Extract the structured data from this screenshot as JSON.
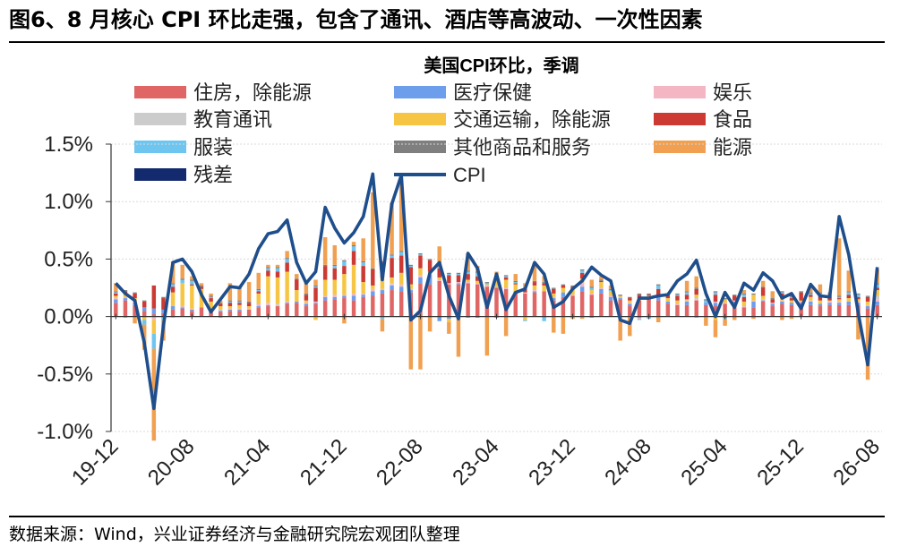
{
  "figure": {
    "title": "图6、8 月核心 CPI 环比走强，包含了通讯、酒店等高波动、一次性因素",
    "source": "数据来源：Wind，兴业证券经济与金融研究院宏观团队整理"
  },
  "chart_data": {
    "type": "bar",
    "title": "美国CPI环比，季调",
    "stacked": true,
    "ylim": [
      -1.0,
      1.5
    ],
    "y_ticks": [
      -1.0,
      -0.5,
      0.0,
      0.5,
      1.0,
      1.5
    ],
    "y_tick_labels": [
      "-1.0%",
      "-0.5%",
      "0.0%",
      "0.5%",
      "1.0%",
      "1.5%"
    ],
    "x_tick_labels": [
      "19-12",
      "20-08",
      "21-04",
      "21-12",
      "22-08",
      "23-04",
      "23-12",
      "24-08",
      "25-04",
      "25-12",
      "26-08"
    ],
    "categories": [
      "19-12",
      "20-01",
      "20-02",
      "20-03",
      "20-04",
      "20-05",
      "20-06",
      "20-07",
      "20-08",
      "20-09",
      "20-10",
      "20-11",
      "20-12",
      "21-01",
      "21-02",
      "21-03",
      "21-04",
      "21-05",
      "21-06",
      "21-07",
      "21-08",
      "21-09",
      "21-10",
      "21-11",
      "21-12",
      "22-01",
      "22-02",
      "22-03",
      "22-04",
      "22-05",
      "22-06",
      "22-07",
      "22-08",
      "22-09",
      "22-10",
      "22-11",
      "22-12",
      "23-01",
      "23-02",
      "23-03",
      "23-04",
      "23-05",
      "23-06",
      "23-07",
      "23-08",
      "23-09",
      "23-10",
      "23-11",
      "23-12",
      "24-01",
      "24-02",
      "24-03",
      "24-04",
      "24-05",
      "24-06",
      "24-07",
      "24-08",
      "24-09",
      "24-10",
      "24-11",
      "24-12",
      "25-01",
      "25-02",
      "25-03",
      "25-04",
      "25-05",
      "25-06",
      "25-07",
      "25-08",
      "25-09",
      "25-10",
      "25-11",
      "25-12",
      "26-01",
      "26-02",
      "26-03",
      "26-04",
      "26-05",
      "26-06",
      "26-07",
      "26-08"
    ],
    "legend_position": "top",
    "series": [
      {
        "name": "住房，除能源",
        "color": "#e06666",
        "values": [
          0.12,
          0.14,
          0.1,
          0.05,
          0.02,
          0.03,
          0.06,
          0.07,
          0.05,
          0.08,
          0.05,
          0.04,
          0.05,
          0.05,
          0.06,
          0.08,
          0.09,
          0.09,
          0.11,
          0.12,
          0.09,
          0.11,
          0.14,
          0.15,
          0.16,
          0.14,
          0.17,
          0.18,
          0.2,
          0.23,
          0.22,
          0.21,
          0.29,
          0.28,
          0.31,
          0.28,
          0.28,
          0.29,
          0.28,
          0.26,
          0.25,
          0.24,
          0.22,
          0.2,
          0.21,
          0.22,
          0.14,
          0.17,
          0.18,
          0.22,
          0.19,
          0.2,
          0.14,
          0.15,
          0.09,
          0.14,
          0.17,
          0.14,
          0.11,
          0.1,
          0.1,
          0.14,
          0.1,
          0.09,
          0.11,
          0.1,
          0.08,
          0.08,
          0.13,
          0.09,
          0.11,
          0.1,
          0.1,
          0.1,
          0.09,
          0.1,
          0.1,
          0.1,
          0.1,
          0.07,
          0.1
        ]
      },
      {
        "name": "医疗保健",
        "color": "#6d9eeb",
        "values": [
          0.03,
          0.02,
          0.02,
          0.03,
          0.05,
          0.03,
          0.03,
          0.01,
          0.01,
          0.0,
          0.01,
          0.01,
          0.01,
          0.01,
          0.0,
          0.01,
          0.01,
          0.0,
          0.01,
          0.01,
          0.02,
          0.01,
          0.03,
          0.02,
          0.02,
          0.04,
          0.02,
          0.04,
          0.03,
          0.04,
          0.04,
          0.02,
          0.05,
          0.08,
          -0.04,
          -0.02,
          0.01,
          -0.01,
          -0.01,
          0.0,
          -0.01,
          -0.01,
          0.0,
          0.0,
          0.01,
          -0.01,
          0.02,
          0.04,
          0.0,
          0.04,
          -0.01,
          0.04,
          0.03,
          0.01,
          0.02,
          -0.01,
          0.0,
          0.03,
          0.02,
          0.0,
          0.03,
          0.0,
          0.02,
          0.03,
          0.0,
          0.03,
          0.0,
          0.05,
          0.01,
          0.02,
          0.02,
          0.02,
          0.02,
          0.03,
          0.02,
          0.02,
          0.02,
          0.03,
          0.02,
          0.02,
          0.03
        ]
      },
      {
        "name": "娱乐",
        "color": "#f4b6c2",
        "values": [
          0.01,
          0.01,
          0.01,
          0.0,
          -0.03,
          0.0,
          -0.01,
          0.01,
          0.01,
          0.0,
          0.01,
          0.0,
          0.01,
          0.01,
          0.01,
          0.02,
          0.02,
          0.01,
          0.01,
          0.0,
          0.01,
          0.01,
          0.01,
          0.02,
          0.01,
          0.02,
          0.01,
          0.02,
          0.01,
          0.01,
          0.02,
          0.01,
          0.02,
          0.01,
          0.01,
          0.01,
          0.01,
          0.01,
          0.01,
          0.01,
          0.0,
          0.01,
          0.0,
          0.01,
          0.01,
          0.0,
          0.01,
          0.0,
          0.01,
          0.03,
          0.01,
          0.01,
          0.01,
          0.01,
          0.01,
          -0.01,
          0.0,
          0.01,
          0.0,
          0.01,
          0.01,
          0.01,
          0.0,
          0.01,
          0.01,
          0.01,
          0.01,
          0.01,
          0.01,
          0.01,
          0.01,
          0.0,
          0.01,
          0.01,
          0.0,
          0.01,
          0.01,
          0.0,
          0.01,
          0.01,
          0.02
        ]
      },
      {
        "name": "教育通讯",
        "color": "#cccccc",
        "values": [
          0.0,
          0.0,
          0.0,
          0.0,
          0.0,
          0.0,
          0.0,
          0.0,
          0.0,
          0.0,
          0.0,
          0.01,
          0.0,
          0.0,
          0.0,
          0.0,
          0.0,
          0.01,
          0.0,
          0.0,
          0.0,
          0.0,
          0.0,
          0.0,
          0.0,
          0.0,
          0.0,
          0.0,
          0.0,
          0.01,
          0.0,
          0.0,
          0.0,
          0.0,
          0.0,
          0.0,
          0.0,
          0.0,
          0.0,
          0.0,
          0.01,
          0.0,
          0.0,
          0.0,
          0.0,
          0.0,
          0.0,
          0.0,
          0.0,
          0.0,
          0.0,
          0.0,
          0.0,
          0.0,
          0.0,
          0.0,
          0.0,
          0.0,
          0.0,
          0.0,
          0.0,
          0.01,
          0.0,
          0.0,
          0.0,
          0.0,
          0.0,
          0.0,
          0.0,
          0.0,
          0.0,
          0.0,
          0.0,
          0.0,
          0.0,
          0.0,
          0.0,
          0.0,
          0.0,
          0.0,
          0.03
        ]
      },
      {
        "name": "交通运输，除能源",
        "color": "#f6c543",
        "values": [
          0.02,
          0.03,
          0.03,
          -0.03,
          -0.12,
          0.0,
          0.12,
          0.2,
          0.2,
          0.16,
          0.06,
          0.03,
          0.02,
          0.03,
          0.02,
          0.09,
          0.23,
          0.23,
          0.26,
          0.1,
          0.02,
          -0.03,
          0.14,
          0.13,
          0.18,
          0.25,
          0.1,
          0.03,
          0.1,
          0.05,
          0.1,
          0.04,
          0.06,
          0.02,
          0.02,
          -0.03,
          0.0,
          0.02,
          0.02,
          0.01,
          0.04,
          0.07,
          0.06,
          -0.03,
          0.04,
          0.05,
          0.03,
          0.04,
          0.05,
          0.04,
          0.03,
          0.05,
          0.04,
          0.01,
          0.02,
          0.02,
          0.01,
          0.01,
          0.03,
          0.03,
          0.01,
          0.03,
          0.0,
          -0.03,
          0.03,
          0.0,
          0.04,
          0.05,
          0.03,
          0.0,
          0.02,
          0.02,
          0.01,
          0.03,
          0.03,
          0.01,
          0.02,
          0.03,
          0.02,
          0.03,
          0.05
        ]
      },
      {
        "name": "食品",
        "color": "#cc3a33",
        "values": [
          0.02,
          0.02,
          0.04,
          0.05,
          0.2,
          0.1,
          0.05,
          0.0,
          0.01,
          0.02,
          0.03,
          0.02,
          0.03,
          0.02,
          0.03,
          0.02,
          0.05,
          0.05,
          0.08,
          0.09,
          0.05,
          0.12,
          0.12,
          0.1,
          0.07,
          0.12,
          0.14,
          0.14,
          0.13,
          0.17,
          0.15,
          0.15,
          0.11,
          0.1,
          0.08,
          0.07,
          0.06,
          0.05,
          0.04,
          0.0,
          0.0,
          0.02,
          0.01,
          0.02,
          0.03,
          0.02,
          0.04,
          0.02,
          0.02,
          0.05,
          0.0,
          0.01,
          0.0,
          0.0,
          0.02,
          0.03,
          0.01,
          0.05,
          0.02,
          0.04,
          0.04,
          0.05,
          0.0,
          0.06,
          -0.01,
          0.04,
          0.04,
          0.0,
          0.07,
          0.03,
          0.04,
          0.02,
          0.07,
          0.02,
          0.05,
          0.04,
          0.01,
          0.03,
          0.02,
          0.04,
          0.02
        ]
      },
      {
        "name": "服装",
        "color": "#6ec6f0",
        "values": [
          0.01,
          -0.01,
          0.0,
          -0.04,
          -0.13,
          -0.03,
          0.02,
          0.03,
          0.03,
          0.0,
          0.01,
          -0.01,
          0.01,
          0.01,
          0.0,
          0.01,
          0.02,
          0.03,
          0.03,
          0.0,
          0.0,
          0.01,
          0.0,
          0.02,
          0.04,
          0.04,
          0.03,
          0.0,
          -0.02,
          0.02,
          0.03,
          0.01,
          0.01,
          0.0,
          0.01,
          0.01,
          0.01,
          0.02,
          0.03,
          0.01,
          0.01,
          0.01,
          0.01,
          -0.01,
          0.0,
          -0.03,
          0.0,
          0.0,
          0.0,
          0.02,
          0.02,
          0.0,
          0.01,
          -0.01,
          0.0,
          -0.01,
          -0.02,
          0.03,
          0.0,
          0.01,
          0.02,
          -0.01,
          0.02,
          0.02,
          -0.01,
          0.0,
          0.02,
          0.0,
          0.0,
          0.0,
          0.01,
          0.01,
          0.0,
          0.01,
          0.01,
          0.0,
          0.01,
          0.02,
          0.02,
          0.0,
          0.03
        ]
      },
      {
        "name": "其他商品和服务",
        "color": "#7f7f7f",
        "values": [
          0.01,
          0.01,
          0.01,
          0.01,
          0.0,
          0.01,
          0.01,
          0.01,
          0.01,
          0.01,
          0.01,
          0.01,
          0.01,
          0.01,
          0.01,
          0.01,
          0.01,
          0.01,
          0.01,
          0.01,
          0.01,
          0.01,
          0.01,
          0.01,
          0.01,
          0.01,
          0.01,
          0.01,
          0.01,
          0.01,
          0.01,
          0.01,
          0.01,
          0.01,
          0.01,
          0.01,
          0.01,
          0.01,
          0.01,
          0.01,
          0.01,
          0.01,
          0.01,
          0.01,
          0.01,
          0.01,
          0.01,
          0.01,
          0.01,
          0.01,
          0.01,
          0.01,
          0.01,
          0.01,
          0.01,
          0.01,
          0.01,
          0.01,
          0.01,
          0.01,
          0.01,
          0.01,
          0.01,
          0.01,
          0.01,
          0.01,
          0.01,
          0.01,
          0.01,
          0.01,
          0.01,
          0.01,
          0.01,
          0.01,
          0.01,
          0.01,
          0.01,
          0.01,
          0.01,
          0.01,
          0.01
        ]
      },
      {
        "name": "能源",
        "color": "#f0a050",
        "values": [
          0.07,
          0.0,
          -0.06,
          -0.22,
          -0.8,
          -0.18,
          0.19,
          0.12,
          0.03,
          0.02,
          0.02,
          0.02,
          0.15,
          0.12,
          0.17,
          0.14,
          0.02,
          0.02,
          0.06,
          0.04,
          0.11,
          0.05,
          0.24,
          0.17,
          -0.06,
          0.03,
          0.2,
          0.66,
          -0.11,
          0.45,
          0.6,
          -0.46,
          -0.46,
          -0.13,
          0.17,
          -0.1,
          -0.35,
          0.15,
          0.05,
          -0.34,
          0.07,
          -0.16,
          0.06,
          0.05,
          0.16,
          0.05,
          -0.14,
          -0.15,
          -0.02,
          -0.02,
          0.06,
          0.03,
          0.03,
          -0.2,
          -0.17,
          0.0,
          0.0,
          -0.05,
          0.01,
          0.0,
          0.09,
          0.1,
          -0.08,
          -0.15,
          -0.06,
          -0.03,
          0.03,
          -0.02,
          0.05,
          0.06,
          -0.03,
          -0.02,
          0.0,
          0.04,
          0.07,
          0.02,
          0.5,
          0.18,
          -0.2,
          -0.55,
          0.12
        ]
      },
      {
        "name": "残差",
        "color": "#142a6e",
        "values": [
          0.0,
          0.0,
          0.0,
          0.0,
          0.0,
          0.0,
          0.0,
          0.0,
          0.0,
          0.0,
          0.0,
          0.0,
          0.0,
          0.0,
          0.0,
          0.0,
          0.0,
          0.0,
          0.0,
          0.0,
          0.0,
          0.0,
          0.0,
          0.0,
          0.0,
          0.0,
          0.0,
          0.0,
          0.0,
          0.0,
          0.0,
          0.0,
          0.0,
          0.0,
          0.0,
          0.0,
          0.0,
          0.0,
          0.0,
          0.0,
          0.0,
          0.0,
          0.0,
          0.0,
          0.0,
          0.0,
          0.0,
          0.0,
          0.0,
          0.0,
          0.0,
          0.0,
          0.0,
          0.0,
          0.0,
          0.0,
          0.0,
          0.0,
          0.0,
          0.0,
          0.0,
          0.0,
          0.0,
          0.0,
          0.0,
          0.0,
          0.0,
          0.0,
          0.0,
          0.0,
          0.0,
          0.0,
          0.0,
          0.0,
          0.0,
          0.0,
          0.0,
          0.0,
          0.0,
          0.0,
          0.0
        ]
      }
    ],
    "line": {
      "name": "CPI",
      "color": "#1f4e8c",
      "values": [
        0.29,
        0.2,
        0.14,
        -0.23,
        -0.8,
        -0.08,
        0.47,
        0.5,
        0.39,
        0.19,
        0.04,
        0.15,
        0.26,
        0.25,
        0.37,
        0.59,
        0.72,
        0.74,
        0.84,
        0.47,
        0.29,
        0.39,
        0.95,
        0.77,
        0.64,
        0.73,
        0.87,
        1.24,
        0.32,
        0.98,
        1.23,
        -0.03,
        0.05,
        0.38,
        0.47,
        0.18,
        -0.02,
        0.55,
        0.42,
        0.08,
        0.37,
        0.06,
        0.21,
        0.24,
        0.47,
        0.37,
        0.08,
        0.13,
        0.24,
        0.31,
        0.43,
        0.36,
        0.31,
        -0.03,
        -0.06,
        0.16,
        0.16,
        0.18,
        0.19,
        0.31,
        0.37,
        0.49,
        0.2,
        0.0,
        0.21,
        0.08,
        0.29,
        0.23,
        0.38,
        0.31,
        0.16,
        0.2,
        0.07,
        0.28,
        0.18,
        0.17,
        0.87,
        0.54,
        0.03,
        -0.42,
        0.43
      ]
    }
  }
}
